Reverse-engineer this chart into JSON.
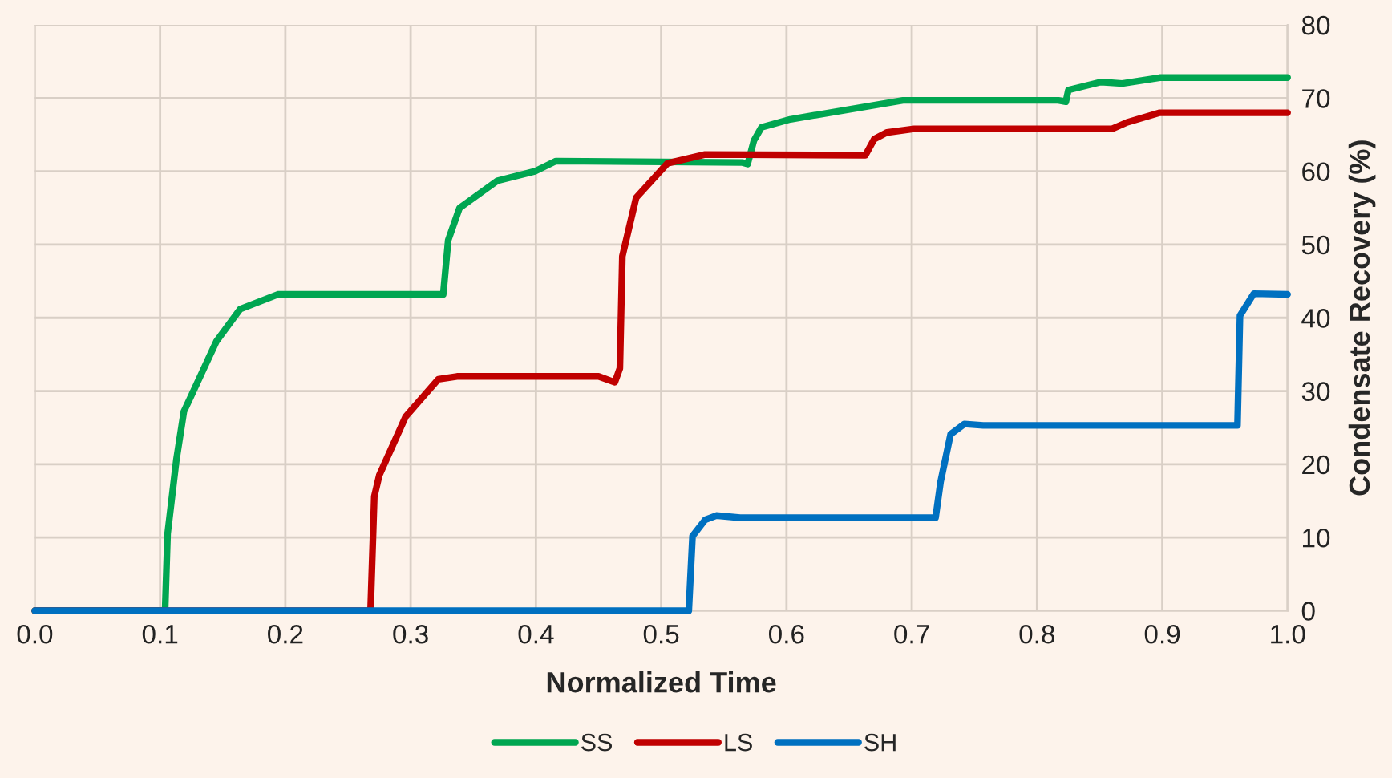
{
  "chart_data": {
    "type": "line",
    "xlabel": "Normalized Time",
    "y2label": "Condensate Recovery (%)",
    "xlim": [
      0,
      1
    ],
    "xticks": [
      {
        "value": 0,
        "label": "0.0"
      },
      {
        "value": 0.1,
        "label": "0.1"
      },
      {
        "value": 0.2,
        "label": "0.2"
      },
      {
        "value": 0.3,
        "label": "0.3"
      },
      {
        "value": 0.4,
        "label": "0.4"
      },
      {
        "value": 0.5,
        "label": "0.5"
      },
      {
        "value": 0.6,
        "label": "0.6"
      },
      {
        "value": 0.7,
        "label": "0.7"
      },
      {
        "value": 0.8,
        "label": "0.8"
      },
      {
        "value": 0.9,
        "label": "0.9"
      },
      {
        "value": 1,
        "label": "1.0"
      }
    ],
    "y2lim": [
      0,
      80
    ],
    "y2ticks": [
      0,
      10,
      20,
      30,
      40,
      50,
      60,
      70,
      80
    ],
    "grid": true,
    "legend": "bottom",
    "marker": "none",
    "line_style": "solid",
    "series": [
      {
        "name": "SS",
        "color": "#00a651",
        "axis": "y2",
        "x": [
          0,
          0.104,
          0.106,
          0.113,
          0.119,
          0.125,
          0.145,
          0.164,
          0.194,
          0.326,
          0.33,
          0.339,
          0.369,
          0.399,
          0.416,
          0.565,
          0.569,
          0.574,
          0.58,
          0.603,
          0.693,
          0.817,
          0.823,
          0.825,
          0.851,
          0.868,
          0.898,
          1.0
        ],
        "values": [
          0,
          0,
          10.5,
          20.6,
          27.2,
          29.4,
          36.8,
          41.2,
          43.2,
          43.2,
          50.6,
          55,
          58.7,
          60,
          61.4,
          61.2,
          61,
          64.2,
          66,
          67.1,
          69.7,
          69.7,
          69.5,
          71.1,
          72.2,
          72,
          72.8,
          72.8
        ]
      },
      {
        "name": "LS",
        "color": "#c00000",
        "axis": "y2",
        "x": [
          0,
          0.268,
          0.271,
          0.275,
          0.296,
          0.322,
          0.337,
          0.45,
          0.463,
          0.467,
          0.469,
          0.48,
          0.505,
          0.535,
          0.663,
          0.67,
          0.68,
          0.702,
          0.86,
          0.872,
          0.898,
          1.0
        ],
        "values": [
          0,
          0,
          15.6,
          18.5,
          26.5,
          31.6,
          32,
          32,
          31.2,
          33.1,
          48.4,
          56.4,
          61.1,
          62.3,
          62.2,
          64.4,
          65.3,
          65.8,
          65.8,
          66.7,
          68,
          68
        ]
      },
      {
        "name": "SH",
        "color": "#0070c0",
        "axis": "y2",
        "x": [
          0,
          0.522,
          0.525,
          0.535,
          0.544,
          0.563,
          0.719,
          0.723,
          0.731,
          0.742,
          0.757,
          0.96,
          0.962,
          0.973,
          1.0
        ],
        "values": [
          0,
          0,
          10.2,
          12.4,
          13,
          12.7,
          12.7,
          17.6,
          24.1,
          25.5,
          25.3,
          25.3,
          40.3,
          43.3,
          43.2
        ]
      }
    ]
  }
}
